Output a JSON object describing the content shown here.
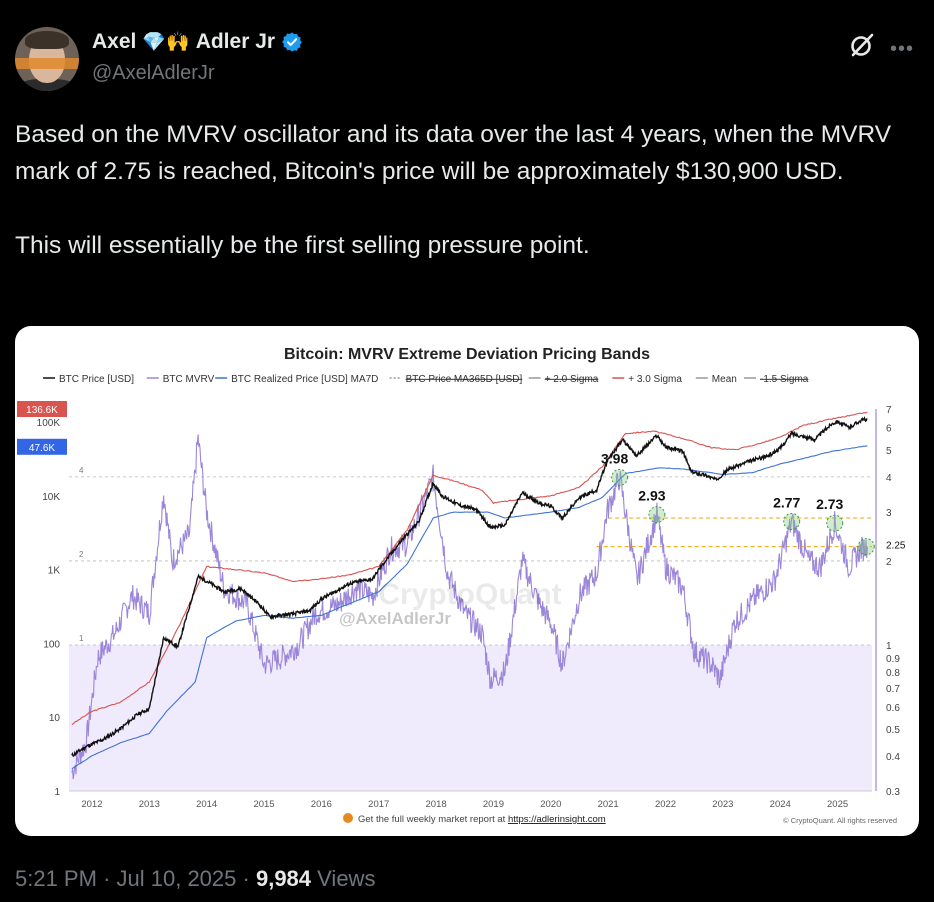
{
  "author": {
    "name_first": "Axel",
    "name_emoji": "💎🙌",
    "name_last": "Adler Jr",
    "handle": "@AxelAdlerJr",
    "verified_color": "#1d9bf0"
  },
  "tweet": {
    "text": "Based on the MVRV oscillator and its data over the last 4 years, when the MVRV mark of 2.75 is reached, Bitcoin's price will be approximately $130,900 USD.\n\nThis will essentially be the first selling pressure point.",
    "time": "5:21 PM",
    "date": "Jul 10, 2025",
    "views_count": "9,984",
    "views_label": "Views",
    "separator": "·"
  },
  "icons": {
    "grok": "grok-icon",
    "more": "more-icon"
  },
  "chart_data": {
    "type": "line",
    "title": "Bitcoin: MVRV Extreme Deviation Pricing Bands",
    "legend": [
      {
        "name": "BTC Price [USD]",
        "color": "#111111",
        "style": "solid"
      },
      {
        "name": "BTC MVRV",
        "color": "#9b86d9",
        "style": "solid"
      },
      {
        "name": "BTC Realized Price [USD] MA7D",
        "color": "#3f73d9",
        "style": "solid"
      },
      {
        "name": "BTC Price MA365D [USD]",
        "color": "#999999",
        "style": "dotted",
        "struck": true
      },
      {
        "name": "+ 2.0 Sigma",
        "color": "#999999",
        "style": "solid",
        "struck": true
      },
      {
        "name": "+ 3.0 Sigma",
        "color": "#d9534f",
        "style": "solid"
      },
      {
        "name": "Mean",
        "color": "#999999",
        "style": "solid"
      },
      {
        "name": "-1.5 Sigma",
        "color": "#999999",
        "style": "solid",
        "struck": true
      }
    ],
    "x_ticks": [
      "2012",
      "2013",
      "2014",
      "2015",
      "2016",
      "2017",
      "2018",
      "2019",
      "2020",
      "2021",
      "2022",
      "2023",
      "2024",
      "2025"
    ],
    "x_range": [
      2011.6,
      2025.6
    ],
    "y_left_scale": "log",
    "y_left_ticks": [
      "1",
      "10",
      "100",
      "1K",
      "10K",
      "100K"
    ],
    "y_left_range": [
      1,
      150000
    ],
    "y_right_scale": "log",
    "y_right_ticks": [
      "0.3",
      "0.4",
      "0.5",
      "0.6",
      "0.7",
      "0.8",
      "0.9",
      "1",
      "2",
      "3",
      "4",
      "5",
      "6",
      "7"
    ],
    "y_right_range": [
      0.3,
      7
    ],
    "inner_mvrv_labels": [
      "4",
      "2",
      "1"
    ],
    "current_price_label": "136.6K",
    "current_realized_label": "47.6K",
    "series": [
      {
        "name": "BTC Price [USD]",
        "points": [
          [
            2011.65,
            3
          ],
          [
            2011.9,
            4
          ],
          [
            2012.2,
            5
          ],
          [
            2012.5,
            7
          ],
          [
            2012.8,
            11
          ],
          [
            2013.0,
            13
          ],
          [
            2013.25,
            120
          ],
          [
            2013.5,
            90
          ],
          [
            2013.85,
            800
          ],
          [
            2014.0,
            700
          ],
          [
            2014.3,
            500
          ],
          [
            2014.6,
            550
          ],
          [
            2014.9,
            350
          ],
          [
            2015.1,
            230
          ],
          [
            2015.5,
            250
          ],
          [
            2015.8,
            280
          ],
          [
            2016.0,
            400
          ],
          [
            2016.5,
            650
          ],
          [
            2016.9,
            750
          ],
          [
            2017.0,
            1000
          ],
          [
            2017.4,
            2500
          ],
          [
            2017.7,
            4500
          ],
          [
            2017.95,
            15000
          ],
          [
            2018.1,
            10000
          ],
          [
            2018.4,
            7500
          ],
          [
            2018.7,
            6500
          ],
          [
            2018.95,
            3700
          ],
          [
            2019.2,
            4000
          ],
          [
            2019.5,
            11000
          ],
          [
            2019.8,
            8000
          ],
          [
            2020.0,
            7200
          ],
          [
            2020.2,
            5000
          ],
          [
            2020.5,
            9500
          ],
          [
            2020.8,
            12000
          ],
          [
            2020.98,
            29000
          ],
          [
            2021.25,
            58000
          ],
          [
            2021.5,
            35000
          ],
          [
            2021.85,
            66000
          ],
          [
            2022.0,
            46000
          ],
          [
            2022.3,
            40000
          ],
          [
            2022.45,
            21000
          ],
          [
            2022.7,
            19000
          ],
          [
            2022.88,
            16500
          ],
          [
            2023.1,
            23000
          ],
          [
            2023.5,
            30000
          ],
          [
            2023.8,
            35000
          ],
          [
            2024.0,
            44000
          ],
          [
            2024.2,
            70000
          ],
          [
            2024.6,
            58000
          ],
          [
            2024.9,
            95000
          ],
          [
            2025.0,
            102000
          ],
          [
            2025.2,
            84000
          ],
          [
            2025.4,
            105000
          ],
          [
            2025.52,
            110000
          ]
        ]
      },
      {
        "name": "BTC Realized Price [USD] MA7D",
        "points": [
          [
            2011.65,
            2
          ],
          [
            2012.0,
            3
          ],
          [
            2012.5,
            4.5
          ],
          [
            2013.0,
            6
          ],
          [
            2013.3,
            12
          ],
          [
            2013.8,
            30
          ],
          [
            2014.0,
            120
          ],
          [
            2014.5,
            200
          ],
          [
            2015.0,
            240
          ],
          [
            2015.5,
            220
          ],
          [
            2016.0,
            240
          ],
          [
            2016.5,
            350
          ],
          [
            2017.0,
            500
          ],
          [
            2017.5,
            1200
          ],
          [
            2017.95,
            5000
          ],
          [
            2018.3,
            6000
          ],
          [
            2018.9,
            6000
          ],
          [
            2019.2,
            5000
          ],
          [
            2019.6,
            5500
          ],
          [
            2020.0,
            6000
          ],
          [
            2020.5,
            7000
          ],
          [
            2020.9,
            9500
          ],
          [
            2021.3,
            20000
          ],
          [
            2021.9,
            24000
          ],
          [
            2022.3,
            23000
          ],
          [
            2022.7,
            21000
          ],
          [
            2023.0,
            19500
          ],
          [
            2023.5,
            20500
          ],
          [
            2024.0,
            27000
          ],
          [
            2024.4,
            32000
          ],
          [
            2024.9,
            40000
          ],
          [
            2025.3,
            45000
          ],
          [
            2025.52,
            47600
          ]
        ]
      },
      {
        "name": "+ 3.0 Sigma",
        "points": [
          [
            2011.65,
            8
          ],
          [
            2012.0,
            12
          ],
          [
            2012.5,
            16
          ],
          [
            2013.0,
            30
          ],
          [
            2013.5,
            160
          ],
          [
            2014.0,
            1100
          ],
          [
            2014.5,
            1000
          ],
          [
            2015.0,
            900
          ],
          [
            2015.5,
            700
          ],
          [
            2016.0,
            750
          ],
          [
            2016.5,
            850
          ],
          [
            2017.0,
            1100
          ],
          [
            2017.5,
            3500
          ],
          [
            2017.95,
            19000
          ],
          [
            2018.3,
            16000
          ],
          [
            2018.8,
            12000
          ],
          [
            2019.0,
            8000
          ],
          [
            2019.5,
            9000
          ],
          [
            2020.0,
            10000
          ],
          [
            2020.5,
            13000
          ],
          [
            2020.9,
            25000
          ],
          [
            2021.3,
            70000
          ],
          [
            2021.8,
            75000
          ],
          [
            2022.3,
            60000
          ],
          [
            2022.8,
            45000
          ],
          [
            2023.2,
            42000
          ],
          [
            2023.6,
            50000
          ],
          [
            2024.0,
            62000
          ],
          [
            2024.4,
            90000
          ],
          [
            2024.9,
            110000
          ],
          [
            2025.3,
            125000
          ],
          [
            2025.52,
            136600
          ]
        ]
      },
      {
        "name": "BTC MVRV",
        "points": [
          [
            2011.65,
            0.35
          ],
          [
            2011.9,
            0.45
          ],
          [
            2012.1,
            0.9
          ],
          [
            2012.4,
            1.1
          ],
          [
            2012.7,
            1.5
          ],
          [
            2013.0,
            1.3
          ],
          [
            2013.25,
            3.5
          ],
          [
            2013.4,
            2.0
          ],
          [
            2013.7,
            2.5
          ],
          [
            2013.85,
            5.5
          ],
          [
            2014.0,
            3.0
          ],
          [
            2014.3,
            1.6
          ],
          [
            2014.7,
            1.4
          ],
          [
            2015.0,
            0.85
          ],
          [
            2015.3,
            0.9
          ],
          [
            2015.6,
            1.0
          ],
          [
            2015.9,
            1.3
          ],
          [
            2016.3,
            1.4
          ],
          [
            2016.6,
            1.6
          ],
          [
            2016.9,
            1.5
          ],
          [
            2017.2,
            2.2
          ],
          [
            2017.5,
            2.3
          ],
          [
            2017.95,
            4.0
          ],
          [
            2018.2,
            1.8
          ],
          [
            2018.5,
            1.3
          ],
          [
            2018.8,
            1.1
          ],
          [
            2018.95,
            0.75
          ],
          [
            2019.2,
            0.8
          ],
          [
            2019.5,
            2.0
          ],
          [
            2019.8,
            1.4
          ],
          [
            2020.0,
            1.2
          ],
          [
            2020.2,
            0.85
          ],
          [
            2020.5,
            1.5
          ],
          [
            2020.8,
            1.8
          ],
          [
            2020.98,
            3.0
          ],
          [
            2021.2,
            3.98
          ],
          [
            2021.5,
            1.7
          ],
          [
            2021.85,
            2.93
          ],
          [
            2022.0,
            1.9
          ],
          [
            2022.3,
            1.6
          ],
          [
            2022.5,
            0.95
          ],
          [
            2022.8,
            0.85
          ],
          [
            2022.95,
            0.75
          ],
          [
            2023.2,
            1.2
          ],
          [
            2023.6,
            1.5
          ],
          [
            2023.9,
            1.7
          ],
          [
            2024.2,
            2.77
          ],
          [
            2024.5,
            2.0
          ],
          [
            2024.7,
            1.9
          ],
          [
            2024.95,
            2.73
          ],
          [
            2025.2,
            1.9
          ],
          [
            2025.4,
            2.2
          ],
          [
            2025.52,
            2.25
          ]
        ]
      }
    ],
    "annotations": [
      {
        "label": "3.98",
        "x": 2021.2,
        "mvrv": 3.98
      },
      {
        "label": "2.93",
        "x": 2021.85,
        "mvrv": 2.93
      },
      {
        "label": "2.77",
        "x": 2024.2,
        "mvrv": 2.77
      },
      {
        "label": "2.73",
        "x": 2024.95,
        "mvrv": 2.73
      },
      {
        "label": "2.25",
        "x": 2025.5,
        "mvrv": 2.25
      }
    ],
    "watermark": "CryptoQuant",
    "watermark_handle": "@AxelAdlerJr",
    "footer_text": "Get the full weekly market report at",
    "footer_link": "https://adlerinsight.com",
    "copyright": "© CryptoQuant. All rights reserved",
    "colors": {
      "price": "#111111",
      "mvrv": "#9b86d9",
      "realized": "#3f73d9",
      "sigma3": "#d9534f",
      "price_badge": "#d9534f",
      "realized_badge": "#3366e6",
      "dash_lines": "#f0a500",
      "low_zone": "#efeafc",
      "circle": "#7bc67b"
    }
  }
}
